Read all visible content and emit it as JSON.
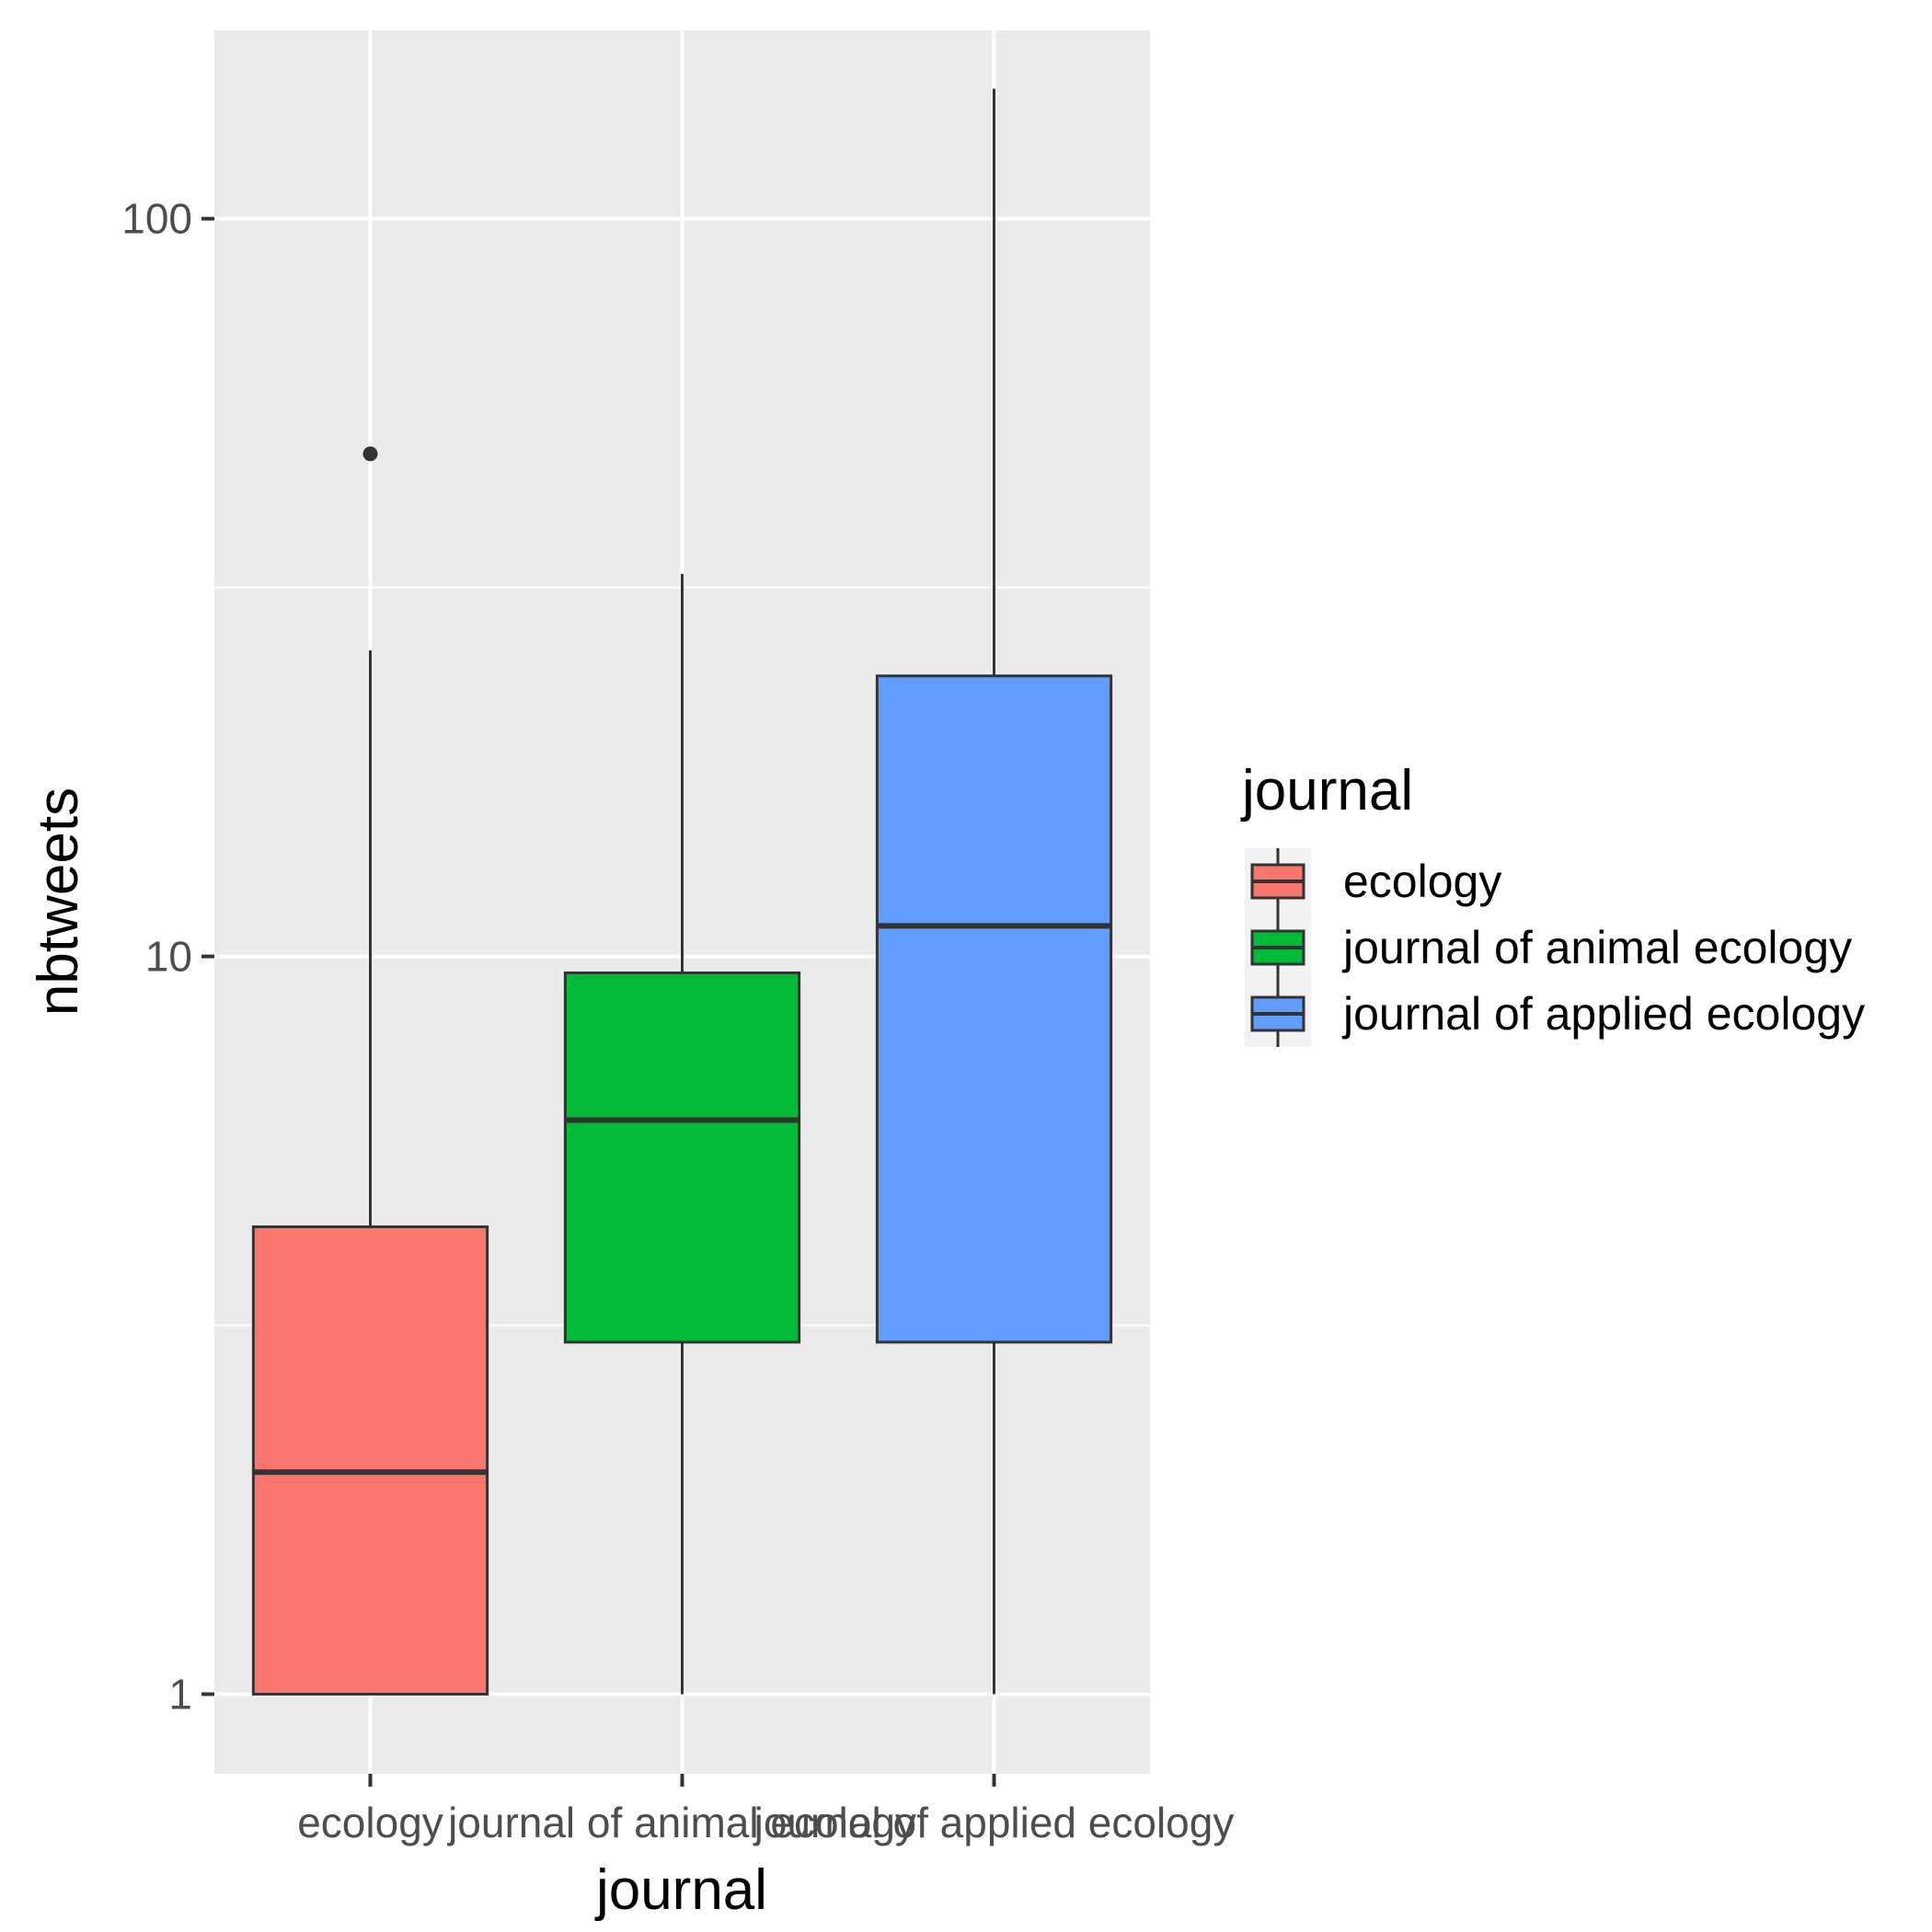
{
  "chart_data": {
    "type": "boxplot",
    "title": "",
    "xlabel": "journal",
    "ylabel": "nbtweets",
    "y_scale": "log10",
    "ylim": [
      0.78,
      180
    ],
    "y_ticks": [
      1,
      10,
      100
    ],
    "y_tick_labels": [
      "1",
      "10",
      "100"
    ],
    "grid": true,
    "legend": {
      "title": "journal",
      "position": "right"
    },
    "categories": [
      "ecology",
      "journal of animal ecology",
      "journal of applied ecology"
    ],
    "series": [
      {
        "name": "ecology",
        "color": "#F8766D",
        "whisker_low": 1,
        "q1": 1,
        "median": 2,
        "q3": 4.3,
        "whisker_high": 26,
        "outliers": [
          48
        ]
      },
      {
        "name": "journal of animal ecology",
        "color": "#00BA38",
        "whisker_low": 1,
        "q1": 3,
        "median": 6,
        "q3": 9.5,
        "whisker_high": 33,
        "outliers": []
      },
      {
        "name": "journal of applied ecology",
        "color": "#619CFF",
        "whisker_low": 1,
        "q1": 3,
        "median": 11,
        "q3": 24,
        "whisker_high": 150,
        "outliers": []
      }
    ]
  }
}
